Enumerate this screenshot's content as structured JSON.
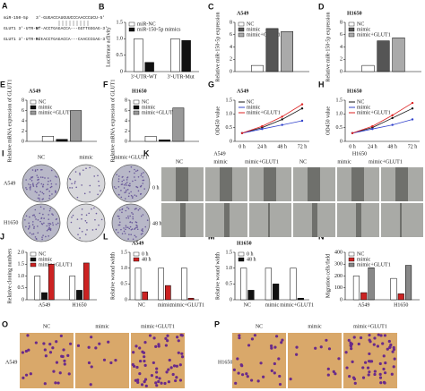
{
  "panel_a": {
    "label": "A",
    "rows": [
      [
        "miR-150-5p",
        "3'-GUGACCAUGUUCCCAACCCUCU-5'"
      ],
      [
        "GLUT1 3'-UTR-WT",
        "5'-ACCTGAGACCA---GGTTGGGAG-3'"
      ],
      [
        "GLUT1 3'-UTR-Mut",
        "5'-ACCTGAGACCA---CAACCCGAG-3'"
      ]
    ]
  },
  "chart_data": [
    {
      "type": "bar",
      "label": "B",
      "ylabel": "Luciferase activity",
      "categories": [
        "3'-UTR-WT",
        "3'-UTR-Mut"
      ],
      "series": [
        {
          "name": "miR-NC",
          "color": "#ffffff",
          "values": [
            1,
            1
          ]
        },
        {
          "name": "miR-150-5p mimics",
          "color": "#111111",
          "values": [
            0.28,
            0.95
          ]
        }
      ],
      "ylim": [
        0,
        1.5
      ],
      "yticks": [
        0,
        0.5,
        {
          "value": 1,
          "label": "1.0"
        },
        1.5
      ]
    },
    {
      "type": "bar",
      "label": "C",
      "title": "A549",
      "ylabel": "Relative miR-150-5p expression",
      "categories": [
        null
      ],
      "series": [
        {
          "name": "NC",
          "color": "#ffffff",
          "values": [
            1
          ]
        },
        {
          "name": "mimic",
          "color": "#555555",
          "values": [
            7
          ]
        },
        {
          "name": "mimic+GLUT1",
          "color": "#aaaaaa",
          "values": [
            6.5
          ]
        }
      ],
      "ylim": [
        0,
        8
      ],
      "yticks": [
        0,
        2,
        4,
        6,
        8
      ]
    },
    {
      "type": "bar",
      "label": "D",
      "title": "H1650",
      "ylabel": "Relative miR-150-5p expression",
      "categories": [
        null
      ],
      "series": [
        {
          "name": "NC",
          "color": "#ffffff",
          "values": [
            1
          ]
        },
        {
          "name": "mimic",
          "color": "#555555",
          "values": [
            5
          ]
        },
        {
          "name": "mimic+GLUT1",
          "color": "#aaaaaa",
          "values": [
            5.5
          ]
        }
      ],
      "ylim": [
        0,
        8
      ],
      "yticks": [
        0,
        2,
        4,
        6,
        8
      ]
    },
    {
      "type": "bar",
      "label": "E",
      "title": "A549",
      "ylabel": "Relative mRNA expression of GLUT1",
      "categories": [
        null
      ],
      "series": [
        {
          "name": "NC",
          "color": "#ffffff",
          "values": [
            1
          ]
        },
        {
          "name": "mimic",
          "color": "#111111",
          "values": [
            0.4
          ]
        },
        {
          "name": "mimic+GLUT1",
          "color": "#999999",
          "values": [
            6
          ]
        }
      ],
      "ylim": [
        0,
        8
      ],
      "yticks": [
        0,
        2,
        4,
        6,
        8
      ]
    },
    {
      "type": "bar",
      "label": "F",
      "title": "H1650",
      "ylabel": "Relative mRNA expression of GLUT1",
      "categories": [
        null
      ],
      "series": [
        {
          "name": "NC",
          "color": "#ffffff",
          "values": [
            1
          ]
        },
        {
          "name": "mimic",
          "color": "#111111",
          "values": [
            0.3
          ]
        },
        {
          "name": "mimic+GLUT1",
          "color": "#999999",
          "values": [
            6.5
          ]
        }
      ],
      "ylim": [
        0,
        8
      ],
      "yticks": [
        0,
        2,
        4,
        6,
        8
      ]
    },
    {
      "type": "line",
      "label": "G",
      "title": "A549",
      "ylabel": "OD450 value",
      "categories": [
        "0 h",
        "24 h",
        "48 h",
        "72 h"
      ],
      "series": [
        {
          "name": "NC",
          "color": "#111111",
          "values": [
            0.3,
            0.5,
            0.8,
            1.2
          ]
        },
        {
          "name": "mimic",
          "color": "#3344cc",
          "values": [
            0.3,
            0.45,
            0.6,
            0.75
          ]
        },
        {
          "name": "mimic+GLUT1",
          "color": "#dd2222",
          "values": [
            0.3,
            0.55,
            0.9,
            1.35
          ]
        }
      ],
      "ylim": [
        0,
        1.5
      ],
      "yticks": [
        0,
        0.5,
        {
          "value": 1,
          "label": "1.0"
        },
        1.5
      ]
    },
    {
      "type": "line",
      "label": "H",
      "title": "H1650",
      "ylabel": "OD450 value",
      "categories": [
        "0 h",
        "24 h",
        "48 h",
        "72 h"
      ],
      "series": [
        {
          "name": "NC",
          "color": "#111111",
          "values": [
            0.3,
            0.5,
            0.85,
            1.2
          ]
        },
        {
          "name": "mimic",
          "color": "#3344cc",
          "values": [
            0.3,
            0.45,
            0.6,
            0.8
          ]
        },
        {
          "name": "mimic+GLUT1",
          "color": "#dd2222",
          "values": [
            0.3,
            0.55,
            0.95,
            1.4
          ]
        }
      ],
      "ylim": [
        0,
        1.5
      ],
      "yticks": [
        0,
        0.5,
        {
          "value": 1,
          "label": "1.0"
        },
        1.5
      ]
    },
    {
      "type": "bar",
      "label": "J",
      "ylabel": "Relative cloning numbers",
      "categories": [
        "A549",
        "H1650"
      ],
      "series": [
        {
          "name": "NC",
          "color": "#ffffff",
          "values": [
            1,
            1
          ]
        },
        {
          "name": "mimic",
          "color": "#111111",
          "values": [
            0.3,
            0.4
          ]
        },
        {
          "name": "mimic+GLUT1",
          "color": "#cc2222",
          "values": [
            1.5,
            1.55
          ]
        }
      ],
      "ylim": [
        0,
        2
      ],
      "yticks": [
        0,
        0.5,
        {
          "value": 1,
          "label": "1.0"
        },
        1.5,
        {
          "value": 2,
          "label": "2.0"
        }
      ]
    },
    {
      "type": "bar",
      "label": "L",
      "title": "A549",
      "ylabel": "Relative wound width",
      "categories": [
        "NC",
        "mimic",
        "mimic+GLUT1"
      ],
      "series": [
        {
          "name": "0 h",
          "color": "#ffffff",
          "values": [
            1,
            1,
            1
          ]
        },
        {
          "name": "48 h",
          "color": "#cc2222",
          "values": [
            0.25,
            0.45,
            0.05
          ]
        }
      ],
      "ylim": [
        0,
        1.5
      ],
      "yticks": [
        0,
        0.5,
        {
          "value": 1,
          "label": "1.0"
        },
        1.5
      ]
    },
    {
      "type": "bar",
      "label": "M",
      "title": "H1650",
      "ylabel": "Relative wound width",
      "categories": [
        "NC",
        "mimic",
        "mimic+GLUT1"
      ],
      "series": [
        {
          "name": "0 h",
          "color": "#ffffff",
          "values": [
            1,
            1,
            1
          ]
        },
        {
          "name": "48 h",
          "color": "#111111",
          "values": [
            0.3,
            0.5,
            0.05
          ]
        }
      ],
      "ylim": [
        0,
        1.5
      ],
      "yticks": [
        0,
        0.5,
        {
          "value": 1,
          "label": "1.0"
        },
        1.5
      ]
    },
    {
      "type": "bar",
      "label": "N",
      "ylabel": "Migration cells/field",
      "categories": [
        "A549",
        "H1650"
      ],
      "series": [
        {
          "name": "NC",
          "color": "#ffffff",
          "values": [
            200,
            180
          ]
        },
        {
          "name": "mimic",
          "color": "#cc2222",
          "values": [
            60,
            50
          ]
        },
        {
          "name": "mimic+GLUT1",
          "color": "#888888",
          "values": [
            270,
            290
          ]
        }
      ],
      "ylim": [
        0,
        400
      ],
      "yticks": [
        0,
        100,
        200,
        300,
        400
      ]
    }
  ],
  "panel_i": {
    "label": "I",
    "columns": [
      "NC",
      "mimic",
      "mimic+GLUT1"
    ],
    "rows": [
      "A549",
      "H1650"
    ]
  },
  "panel_k": {
    "label": "K",
    "lines": [
      "A549",
      "H1650"
    ],
    "columns": [
      "NC",
      "mimic",
      "mimic+GLUT1",
      "NC",
      "mimic",
      "mimic+GLUT1"
    ],
    "rows": [
      "0 h",
      "48 h"
    ]
  },
  "panel_o": {
    "label": "O",
    "line": "A549",
    "columns": [
      "NC",
      "mimic",
      "mimic+GLUT1"
    ]
  },
  "panel_p": {
    "label": "P",
    "line": "H1650",
    "columns": [
      "NC",
      "mimic",
      "mimic+GLUT1"
    ]
  }
}
